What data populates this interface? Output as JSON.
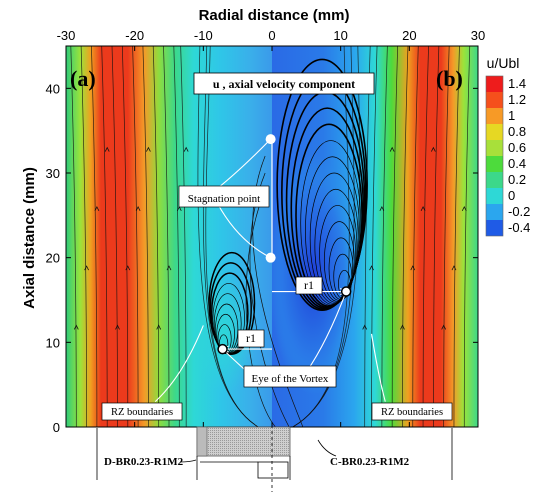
{
  "chart_data": {
    "type": "heatmap",
    "x_axis": {
      "label": "Radial distance (mm)",
      "range": [
        -30,
        30
      ],
      "ticks": [
        -30,
        -20,
        -10,
        0,
        10,
        20,
        30
      ]
    },
    "y_axis": {
      "label": "Axial distance (mm)",
      "range": [
        0,
        45
      ],
      "ticks": [
        0,
        10,
        20,
        30,
        40
      ]
    },
    "colorbar": {
      "title": "u/Ubl",
      "ticks": [
        "1.4",
        "1.2",
        "1",
        "0.8",
        "0.6",
        "0.4",
        "0.2",
        "0",
        "-0.2",
        "-0.4"
      ],
      "range": [
        -0.4,
        1.4
      ],
      "colors": [
        "#ee1c1c",
        "#f5501c",
        "#f79a26",
        "#e6d823",
        "#a8e03a",
        "#4ddb3c",
        "#3cd88a",
        "#2ed8d6",
        "#2ba6ee",
        "#1f5be6"
      ]
    },
    "panels": [
      {
        "label": "(a)",
        "x_range": [
          -30,
          0
        ]
      },
      {
        "label": "(b)",
        "x_range": [
          0,
          30
        ]
      }
    ],
    "title": "u , axial velocity component",
    "annotations": {
      "stagnation": {
        "text": "Stagnation point",
        "points": [
          [
            -0.2,
            34
          ],
          [
            -0.2,
            20
          ]
        ]
      },
      "vortex_eye": {
        "text": "Eye of the Vortex",
        "points": [
          [
            -7.2,
            9.2
          ],
          [
            10.8,
            16
          ]
        ]
      },
      "r1_left": "r1",
      "r1_right": "r1",
      "rz_left": "RZ boundaries",
      "rz_right": "RZ boundaries",
      "config_left": "D-BR0.23-R1M2",
      "config_right": "C-BR0.23-R1M2"
    }
  }
}
